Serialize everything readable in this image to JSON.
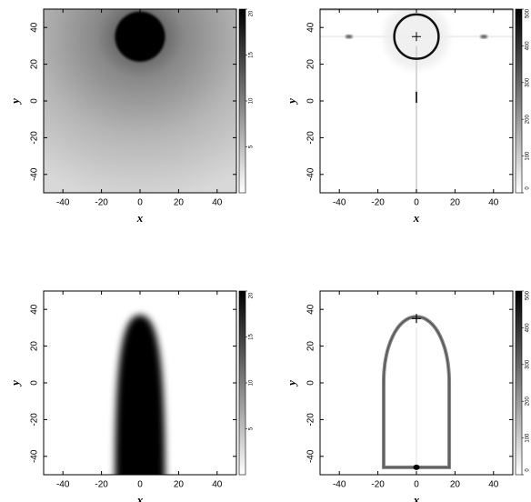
{
  "chart_data": [
    {
      "type": "heatmap",
      "xlabel": "x",
      "ylabel": "y",
      "xlim": [
        -50,
        50
      ],
      "ylim": [
        -50,
        50
      ],
      "xticks": [
        -40,
        -20,
        0,
        20,
        40
      ],
      "yticks": [
        -40,
        -20,
        0,
        20,
        40
      ],
      "clim": [
        0,
        20
      ],
      "cticks": [
        5,
        10,
        15,
        20
      ],
      "colors": [
        "#ffffff",
        "#000000"
      ]
    },
    {
      "type": "heatmap",
      "xlabel": "x",
      "ylabel": "y",
      "xlim": [
        -50,
        50
      ],
      "ylim": [
        -50,
        50
      ],
      "xticks": [
        -40,
        -20,
        0,
        20,
        40
      ],
      "yticks": [
        -40,
        -20,
        0,
        20,
        40
      ],
      "clim": [
        0,
        500
      ],
      "cticks": [
        0,
        100,
        200,
        300,
        400,
        500
      ],
      "colors": [
        "#ffffff",
        "#000000"
      ]
    },
    {
      "type": "heatmap",
      "xlabel": "x",
      "ylabel": "y",
      "xlim": [
        -50,
        50
      ],
      "ylim": [
        -50,
        50
      ],
      "xticks": [
        -40,
        -20,
        0,
        20,
        40
      ],
      "yticks": [
        -40,
        -20,
        0,
        20,
        40
      ],
      "clim": [
        0,
        20
      ],
      "cticks": [
        5,
        10,
        15,
        20
      ],
      "colors": [
        "#ffffff",
        "#000000"
      ]
    },
    {
      "type": "heatmap",
      "xlabel": "x",
      "ylabel": "y",
      "xlim": [
        -50,
        50
      ],
      "ylim": [
        -50,
        50
      ],
      "xticks": [
        -40,
        -20,
        0,
        20,
        40
      ],
      "yticks": [
        -40,
        -20,
        0,
        20,
        40
      ],
      "clim": [
        0,
        500
      ],
      "cticks": [
        0,
        100,
        200,
        300,
        400,
        500
      ],
      "colors": [
        "#ffffff",
        "#000000"
      ]
    }
  ]
}
